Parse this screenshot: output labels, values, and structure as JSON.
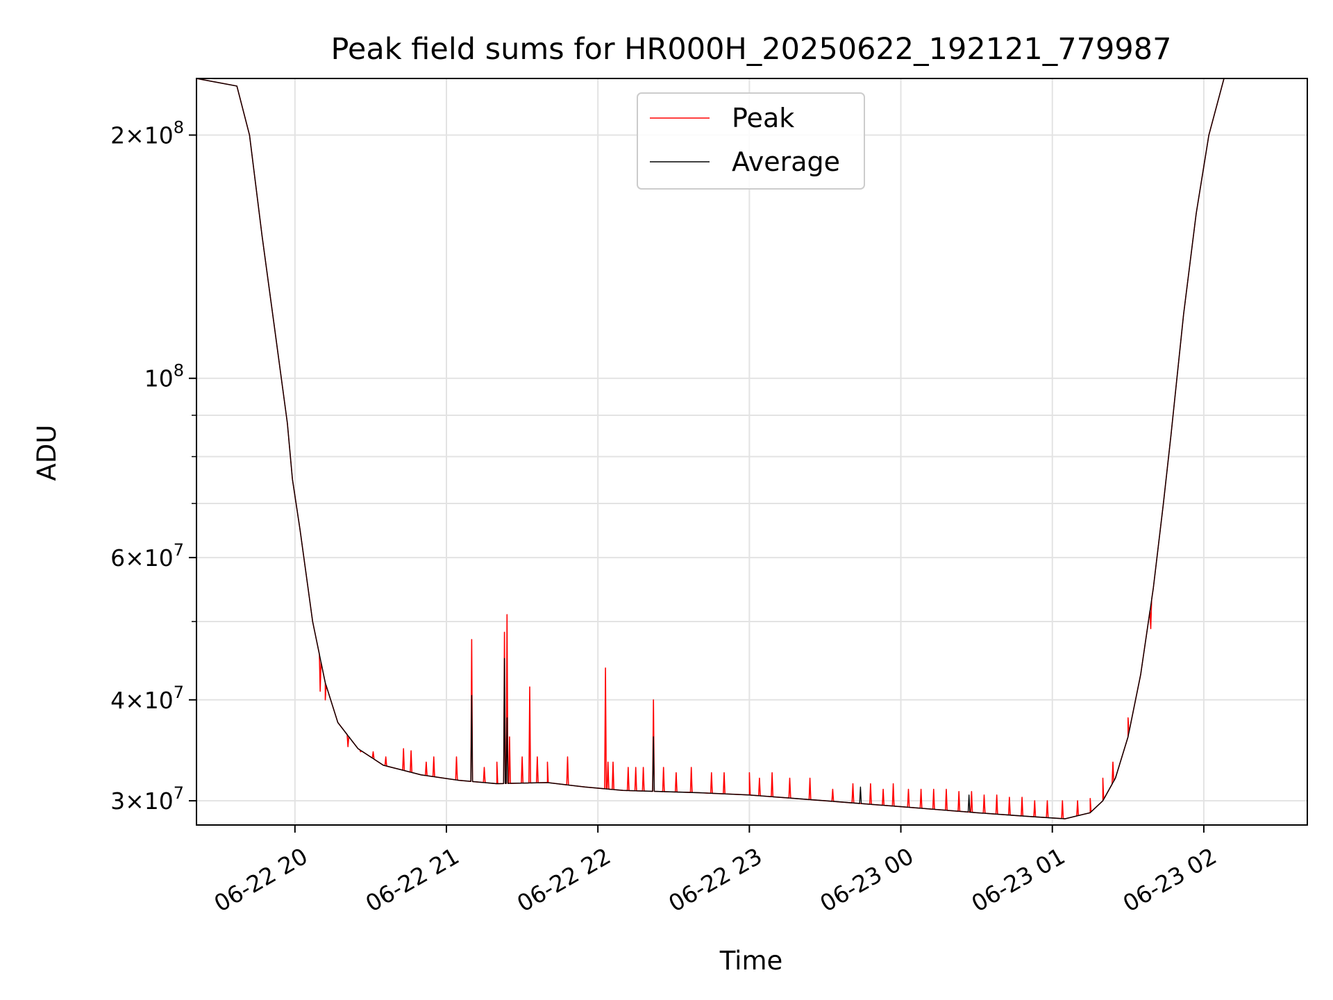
{
  "chart_data": {
    "type": "line",
    "title": "Peak field sums for HR000H_20250622_192121_779987",
    "xlabel": "Time",
    "ylabel": "ADU",
    "yscale": "log",
    "ylim": [
      28000000,
      235000000
    ],
    "xlim": [
      "2025-06-22T19:21",
      "2025-06-23T02:41"
    ],
    "grid": true,
    "legend_position": "top-center",
    "x_ticks": [
      {
        "value": "2025-06-22T20:00",
        "label": "06-22 20"
      },
      {
        "value": "2025-06-22T21:00",
        "label": "06-22 21"
      },
      {
        "value": "2025-06-22T22:00",
        "label": "06-22 22"
      },
      {
        "value": "2025-06-22T23:00",
        "label": "06-22 23"
      },
      {
        "value": "2025-06-23T00:00",
        "label": "06-23 00"
      },
      {
        "value": "2025-06-23T01:00",
        "label": "06-23 01"
      },
      {
        "value": "2025-06-23T02:00",
        "label": "06-23 02"
      }
    ],
    "y_ticks": [
      {
        "value": 30000000,
        "mant": "3",
        "exp": "7"
      },
      {
        "value": 40000000,
        "mant": "4",
        "exp": "7"
      },
      {
        "value": 60000000,
        "mant": "6",
        "exp": "7"
      },
      {
        "value": 100000000,
        "mant": "",
        "exp": "8"
      },
      {
        "value": 200000000,
        "mant": "2",
        "exp": "8"
      }
    ],
    "y_minor_ticks": [
      50000000,
      70000000,
      80000000,
      90000000
    ],
    "series": [
      {
        "name": "Peak",
        "color": "#ff0000",
        "spikes": [
          [
            "2025-06-22T20:10",
            41000000
          ],
          [
            "2025-06-22T20:12",
            40000000
          ],
          [
            "2025-06-22T20:21",
            35000000
          ],
          [
            "2025-06-22T20:26",
            34500000
          ],
          [
            "2025-06-22T20:31",
            34500000
          ],
          [
            "2025-06-22T20:36",
            34000000
          ],
          [
            "2025-06-22T20:43",
            34800000
          ],
          [
            "2025-06-22T20:46",
            34600000
          ],
          [
            "2025-06-22T20:52",
            33500000
          ],
          [
            "2025-06-22T20:55",
            34000000
          ],
          [
            "2025-06-22T21:04",
            34000000
          ],
          [
            "2025-06-22T21:10",
            47500000
          ],
          [
            "2025-06-22T21:15",
            33000000
          ],
          [
            "2025-06-22T21:20",
            33500000
          ],
          [
            "2025-06-22T21:23",
            48500000
          ],
          [
            "2025-06-22T21:24",
            51000000
          ],
          [
            "2025-06-22T21:25",
            36000000
          ],
          [
            "2025-06-22T21:30",
            34000000
          ],
          [
            "2025-06-22T21:33",
            41500000
          ],
          [
            "2025-06-22T21:36",
            34000000
          ],
          [
            "2025-06-22T21:40",
            33500000
          ],
          [
            "2025-06-22T21:48",
            34000000
          ],
          [
            "2025-06-22T22:03",
            43800000
          ],
          [
            "2025-06-22T22:04",
            33500000
          ],
          [
            "2025-06-22T22:06",
            33500000
          ],
          [
            "2025-06-22T22:12",
            33000000
          ],
          [
            "2025-06-22T22:15",
            33000000
          ],
          [
            "2025-06-22T22:18",
            33000000
          ],
          [
            "2025-06-22T22:22",
            40000000
          ],
          [
            "2025-06-22T22:26",
            33000000
          ],
          [
            "2025-06-22T22:31",
            32500000
          ],
          [
            "2025-06-22T22:37",
            33000000
          ],
          [
            "2025-06-22T22:45",
            32500000
          ],
          [
            "2025-06-22T22:50",
            32500000
          ],
          [
            "2025-06-22T23:00",
            32500000
          ],
          [
            "2025-06-22T23:04",
            32000000
          ],
          [
            "2025-06-22T23:09",
            32500000
          ],
          [
            "2025-06-22T23:16",
            32000000
          ],
          [
            "2025-06-22T23:24",
            32000000
          ],
          [
            "2025-06-22T23:33",
            31000000
          ],
          [
            "2025-06-22T23:41",
            31500000
          ],
          [
            "2025-06-22T23:48",
            31500000
          ],
          [
            "2025-06-22T23:53",
            31000000
          ],
          [
            "2025-06-22T23:57",
            31500000
          ],
          [
            "2025-06-23T00:03",
            31000000
          ],
          [
            "2025-06-23T00:08",
            31000000
          ],
          [
            "2025-06-23T00:13",
            31000000
          ],
          [
            "2025-06-23T00:18",
            31000000
          ],
          [
            "2025-06-23T00:23",
            30800000
          ],
          [
            "2025-06-23T00:28",
            30800000
          ],
          [
            "2025-06-23T00:33",
            30500000
          ],
          [
            "2025-06-23T00:38",
            30500000
          ],
          [
            "2025-06-23T00:43",
            30300000
          ],
          [
            "2025-06-23T00:48",
            30300000
          ],
          [
            "2025-06-23T00:53",
            30000000
          ],
          [
            "2025-06-23T00:58",
            30000000
          ],
          [
            "2025-06-23T01:04",
            30000000
          ],
          [
            "2025-06-23T01:10",
            30000000
          ],
          [
            "2025-06-23T01:15",
            30200000
          ],
          [
            "2025-06-23T01:20",
            32000000
          ],
          [
            "2025-06-23T01:24",
            33500000
          ],
          [
            "2025-06-23T01:30",
            38000000
          ],
          [
            "2025-06-23T01:35",
            43000000
          ],
          [
            "2025-06-23T01:39",
            49000000
          ]
        ]
      },
      {
        "name": "Average",
        "color": "#000000",
        "spikes": [
          [
            "2025-06-22T21:10",
            40500000
          ],
          [
            "2025-06-22T21:23",
            45000000
          ],
          [
            "2025-06-22T21:24",
            38000000
          ],
          [
            "2025-06-22T22:22",
            36000000
          ],
          [
            "2025-06-22T23:44",
            31200000
          ],
          [
            "2025-06-23T00:27",
            30500000
          ]
        ]
      }
    ],
    "baseline": [
      [
        "2025-06-22T19:21",
        235000000
      ],
      [
        "2025-06-22T19:37",
        230000000
      ],
      [
        "2025-06-22T19:42",
        200000000
      ],
      [
        "2025-06-22T19:47",
        150000000
      ],
      [
        "2025-06-22T19:52",
        115000000
      ],
      [
        "2025-06-22T19:57",
        88000000
      ],
      [
        "2025-06-22T19:59",
        75000000
      ],
      [
        "2025-06-22T20:02",
        65000000
      ],
      [
        "2025-06-22T20:07",
        50000000
      ],
      [
        "2025-06-22T20:12",
        42000000
      ],
      [
        "2025-06-22T20:17",
        37500000
      ],
      [
        "2025-06-22T20:25",
        34800000
      ],
      [
        "2025-06-22T20:35",
        33200000
      ],
      [
        "2025-06-22T20:50",
        32300000
      ],
      [
        "2025-06-22T21:05",
        31800000
      ],
      [
        "2025-06-22T21:20",
        31500000
      ],
      [
        "2025-06-22T21:40",
        31600000
      ],
      [
        "2025-06-22T21:55",
        31200000
      ],
      [
        "2025-06-22T22:10",
        30900000
      ],
      [
        "2025-06-22T22:40",
        30700000
      ],
      [
        "2025-06-22T23:00",
        30500000
      ],
      [
        "2025-06-22T23:30",
        30000000
      ],
      [
        "2025-06-23T00:00",
        29500000
      ],
      [
        "2025-06-23T00:30",
        29000000
      ],
      [
        "2025-06-23T00:50",
        28700000
      ],
      [
        "2025-06-23T01:05",
        28500000
      ],
      [
        "2025-06-23T01:15",
        29000000
      ],
      [
        "2025-06-23T01:20",
        30000000
      ],
      [
        "2025-06-23T01:25",
        32000000
      ],
      [
        "2025-06-23T01:30",
        36000000
      ],
      [
        "2025-06-23T01:35",
        43000000
      ],
      [
        "2025-06-23T01:40",
        55000000
      ],
      [
        "2025-06-23T01:44",
        70000000
      ],
      [
        "2025-06-23T01:47",
        85000000
      ],
      [
        "2025-06-23T01:52",
        120000000
      ],
      [
        "2025-06-23T01:57",
        160000000
      ],
      [
        "2025-06-23T02:02",
        200000000
      ],
      [
        "2025-06-23T02:08",
        235000000
      ],
      [
        "2025-06-23T02:41",
        235000000
      ]
    ]
  }
}
